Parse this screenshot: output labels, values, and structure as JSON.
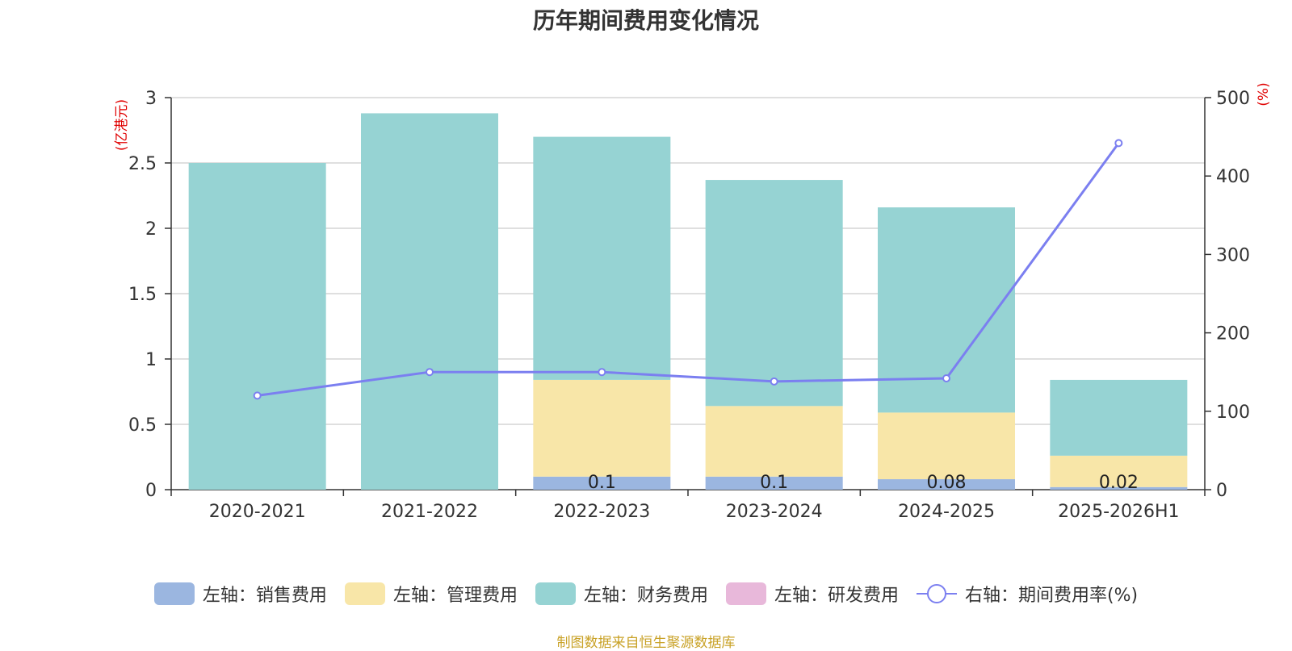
{
  "chart_data": {
    "type": "bar",
    "stacked": true,
    "title": "历年期间费用变化情况",
    "categories": [
      "2020-2021",
      "2021-2022",
      "2022-2023",
      "2023-2024",
      "2024-2025",
      "2025-2026H1"
    ],
    "left_axis": {
      "label": "(亿港元)",
      "ylim": [
        0,
        3
      ],
      "ticks": [
        "0",
        "0.5",
        "1",
        "1.5",
        "2",
        "2.5",
        "3"
      ],
      "tick_values": [
        0,
        0.5,
        1,
        1.5,
        2,
        2.5,
        3
      ]
    },
    "right_axis": {
      "label": "(%)",
      "ylim": [
        0,
        500
      ],
      "ticks": [
        "0",
        "100",
        "200",
        "300",
        "400",
        "500"
      ],
      "tick_values": [
        0,
        100,
        200,
        300,
        400,
        500
      ]
    },
    "series": [
      {
        "name": "左轴：销售费用",
        "axis": "left",
        "color": "#9bb6e0",
        "values": [
          0,
          0,
          0.1,
          0.1,
          0.08,
          0.02
        ],
        "labels": [
          "",
          "",
          "0.1",
          "0.1",
          "0.08",
          "0.02"
        ]
      },
      {
        "name": "左轴：管理费用",
        "axis": "left",
        "color": "#f8e6a8",
        "values": [
          0,
          0,
          0.74,
          0.54,
          0.51,
          0.24
        ]
      },
      {
        "name": "左轴：财务费用",
        "axis": "left",
        "color": "#96d3d3",
        "values": [
          2.5,
          2.88,
          1.86,
          1.73,
          1.57,
          0.58
        ]
      },
      {
        "name": "左轴：研发费用",
        "axis": "left",
        "color": "#e8b8da",
        "values": [
          0,
          0,
          0,
          0,
          0,
          0
        ]
      },
      {
        "name": "右轴：期间费用率(%)",
        "axis": "right",
        "type": "line",
        "color": "#7b7ff0",
        "values": [
          120,
          150,
          150,
          138,
          142,
          442
        ]
      }
    ],
    "grid": true,
    "legend": "bottom-center"
  },
  "source_note": "制图数据来自恒生聚源数据库"
}
